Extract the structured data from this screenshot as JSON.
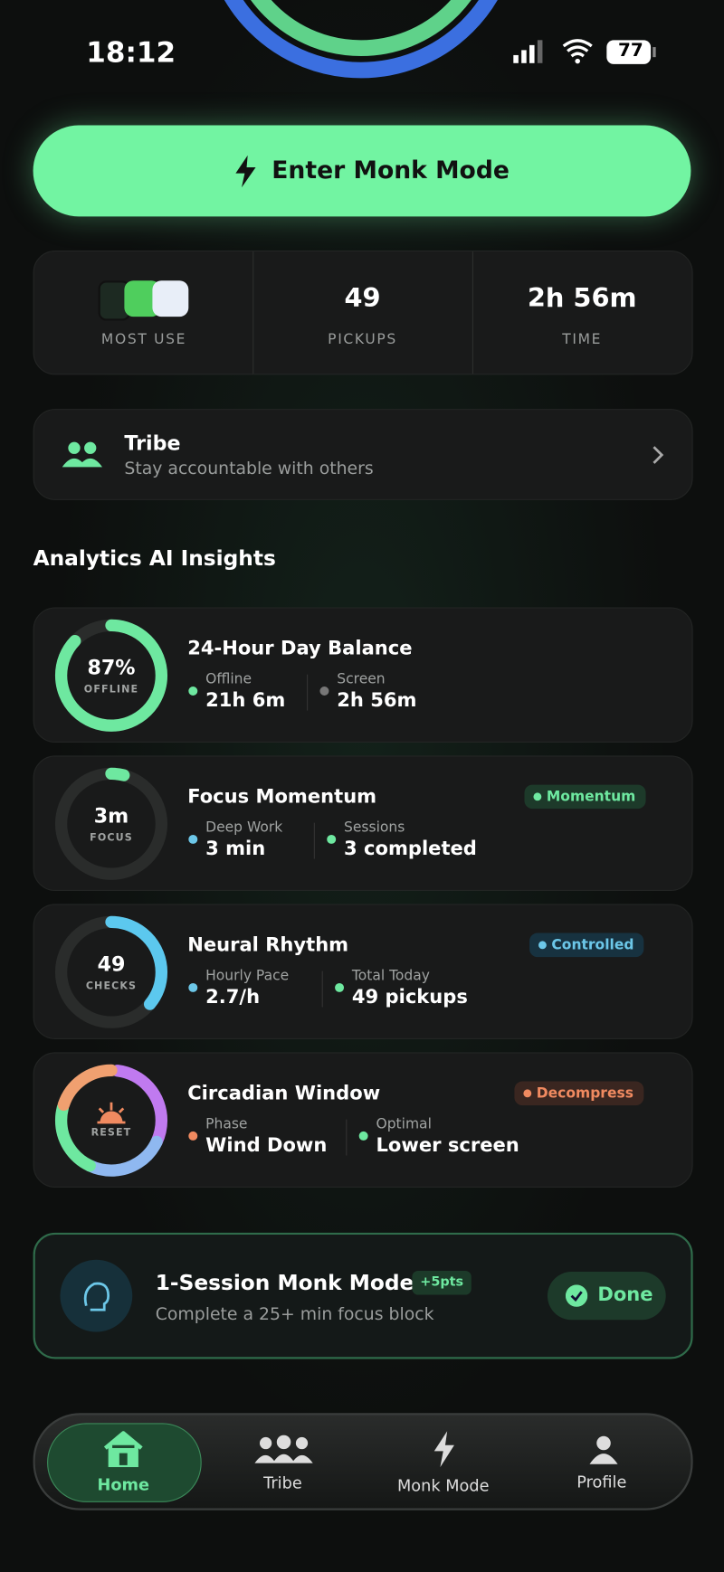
{
  "status_bar": {
    "time": "18:12",
    "battery": "77"
  },
  "primary_button": "Enter Monk Mode",
  "stats": [
    {
      "label": "MOST USE"
    },
    {
      "value": "49",
      "label": "PICKUPS"
    },
    {
      "value": "2h 56m",
      "label": "TIME"
    }
  ],
  "tribe_card": {
    "title": "Tribe",
    "subtitle": "Stay accountable with others"
  },
  "section_title": "Analytics AI Insights",
  "insights": [
    {
      "ring_value": "87%",
      "ring_label": "OFFLINE",
      "title": "24-Hour Day Balance",
      "metrics": [
        {
          "label": "Offline",
          "value": "21h 6m"
        },
        {
          "label": "Screen",
          "value": "2h 56m"
        }
      ]
    },
    {
      "ring_value": "3m",
      "ring_label": "FOCUS",
      "title": "Focus Momentum",
      "badge": "Momentum",
      "metrics": [
        {
          "label": "Deep Work",
          "value": "3 min"
        },
        {
          "label": "Sessions",
          "value": "3 completed"
        }
      ]
    },
    {
      "ring_value": "49",
      "ring_label": "CHECKS",
      "title": "Neural Rhythm",
      "badge": "Controlled",
      "metrics": [
        {
          "label": "Hourly Pace",
          "value": "2.7/h"
        },
        {
          "label": "Total Today",
          "value": "49 pickups"
        }
      ]
    },
    {
      "ring_label": "RESET",
      "title": "Circadian Window",
      "badge": "Decompress",
      "metrics": [
        {
          "label": "Phase",
          "value": "Wind Down"
        },
        {
          "label": "Optimal",
          "value": "Lower screen"
        }
      ]
    }
  ],
  "challenge": {
    "title": "1-Session Monk Mode",
    "points": "+5pts",
    "subtitle": "Complete a 25+ min focus block",
    "button": "Done"
  },
  "nav": [
    "Home",
    "Tribe",
    "Monk Mode",
    "Profile"
  ]
}
